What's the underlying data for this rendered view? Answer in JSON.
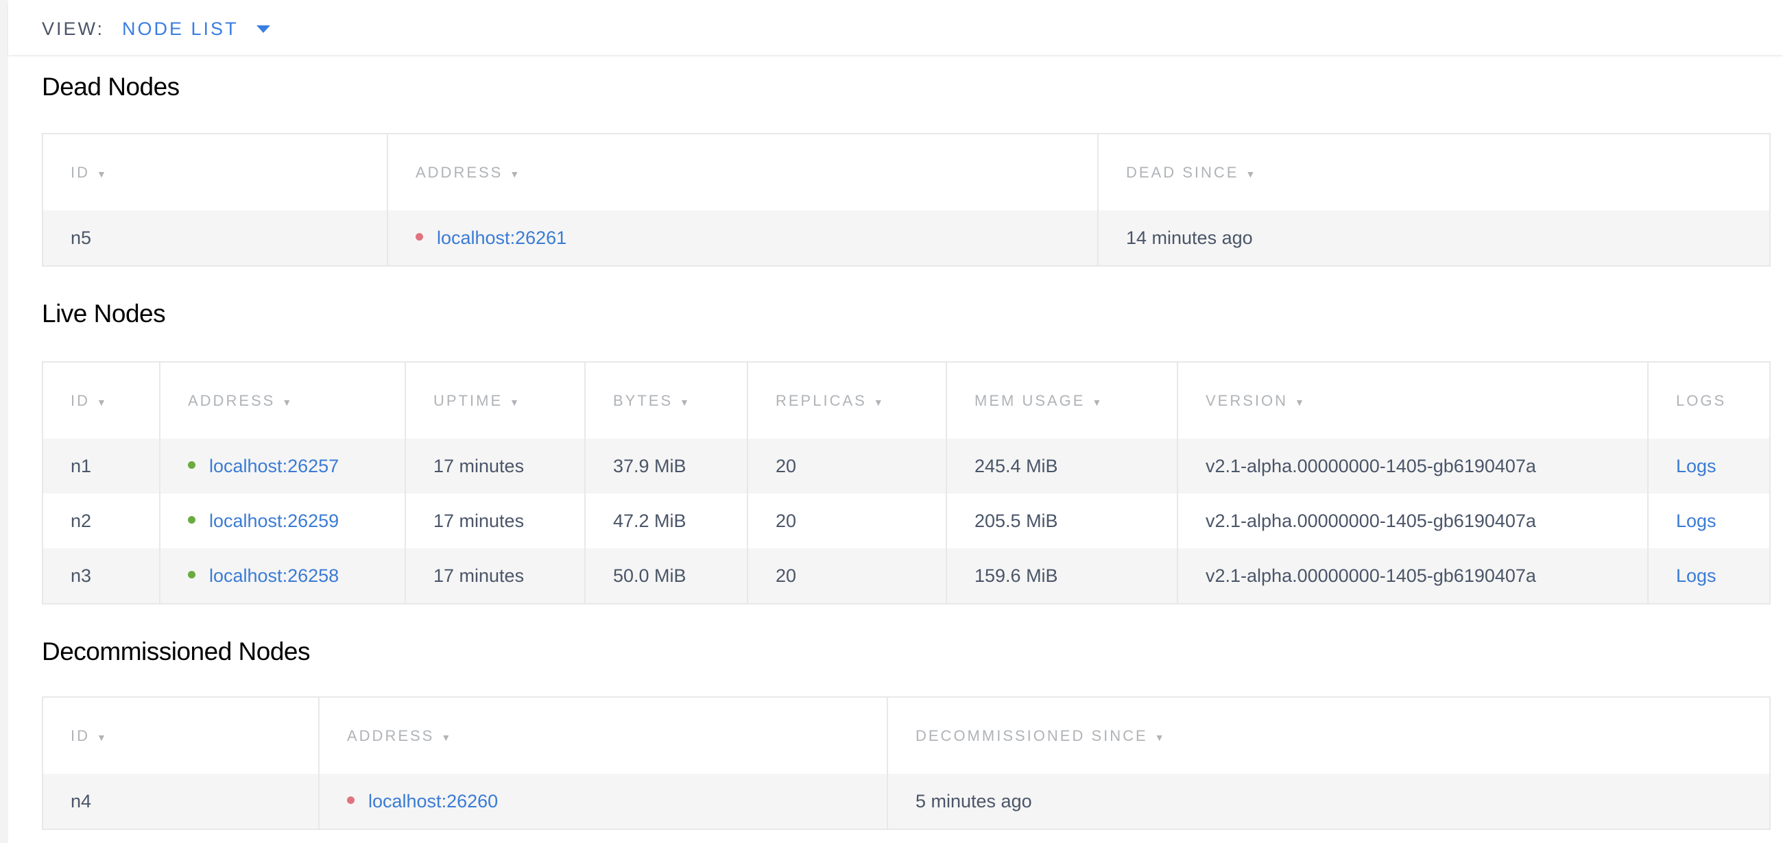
{
  "view": {
    "label": "VIEW:",
    "value": "NODE LIST",
    "icon": "caret-down-icon"
  },
  "colors": {
    "accent": "#3a7de1",
    "dead_dot": "#e0737f",
    "live_dot": "#6aab3f"
  },
  "dead": {
    "title": "Dead Nodes",
    "columns": [
      "ID",
      "ADDRESS",
      "DEAD SINCE"
    ],
    "rows": [
      {
        "id": "n5",
        "address": "localhost:26261",
        "since": "14 minutes ago"
      }
    ]
  },
  "live": {
    "title": "Live Nodes",
    "columns": [
      "ID",
      "ADDRESS",
      "UPTIME",
      "BYTES",
      "REPLICAS",
      "MEM USAGE",
      "VERSION",
      "LOGS"
    ],
    "rows": [
      {
        "id": "n1",
        "address": "localhost:26257",
        "uptime": "17 minutes",
        "bytes": "37.9 MiB",
        "replicas": "20",
        "mem": "245.4 MiB",
        "version": "v2.1-alpha.00000000-1405-gb6190407a",
        "logs": "Logs"
      },
      {
        "id": "n2",
        "address": "localhost:26259",
        "uptime": "17 minutes",
        "bytes": "47.2 MiB",
        "replicas": "20",
        "mem": "205.5 MiB",
        "version": "v2.1-alpha.00000000-1405-gb6190407a",
        "logs": "Logs"
      },
      {
        "id": "n3",
        "address": "localhost:26258",
        "uptime": "17 minutes",
        "bytes": "50.0 MiB",
        "replicas": "20",
        "mem": "159.6 MiB",
        "version": "v2.1-alpha.00000000-1405-gb6190407a",
        "logs": "Logs"
      }
    ]
  },
  "decommissioned": {
    "title": "Decommissioned Nodes",
    "columns": [
      "ID",
      "ADDRESS",
      "DECOMMISSIONED SINCE"
    ],
    "rows": [
      {
        "id": "n4",
        "address": "localhost:26260",
        "since": "5 minutes ago"
      }
    ]
  }
}
